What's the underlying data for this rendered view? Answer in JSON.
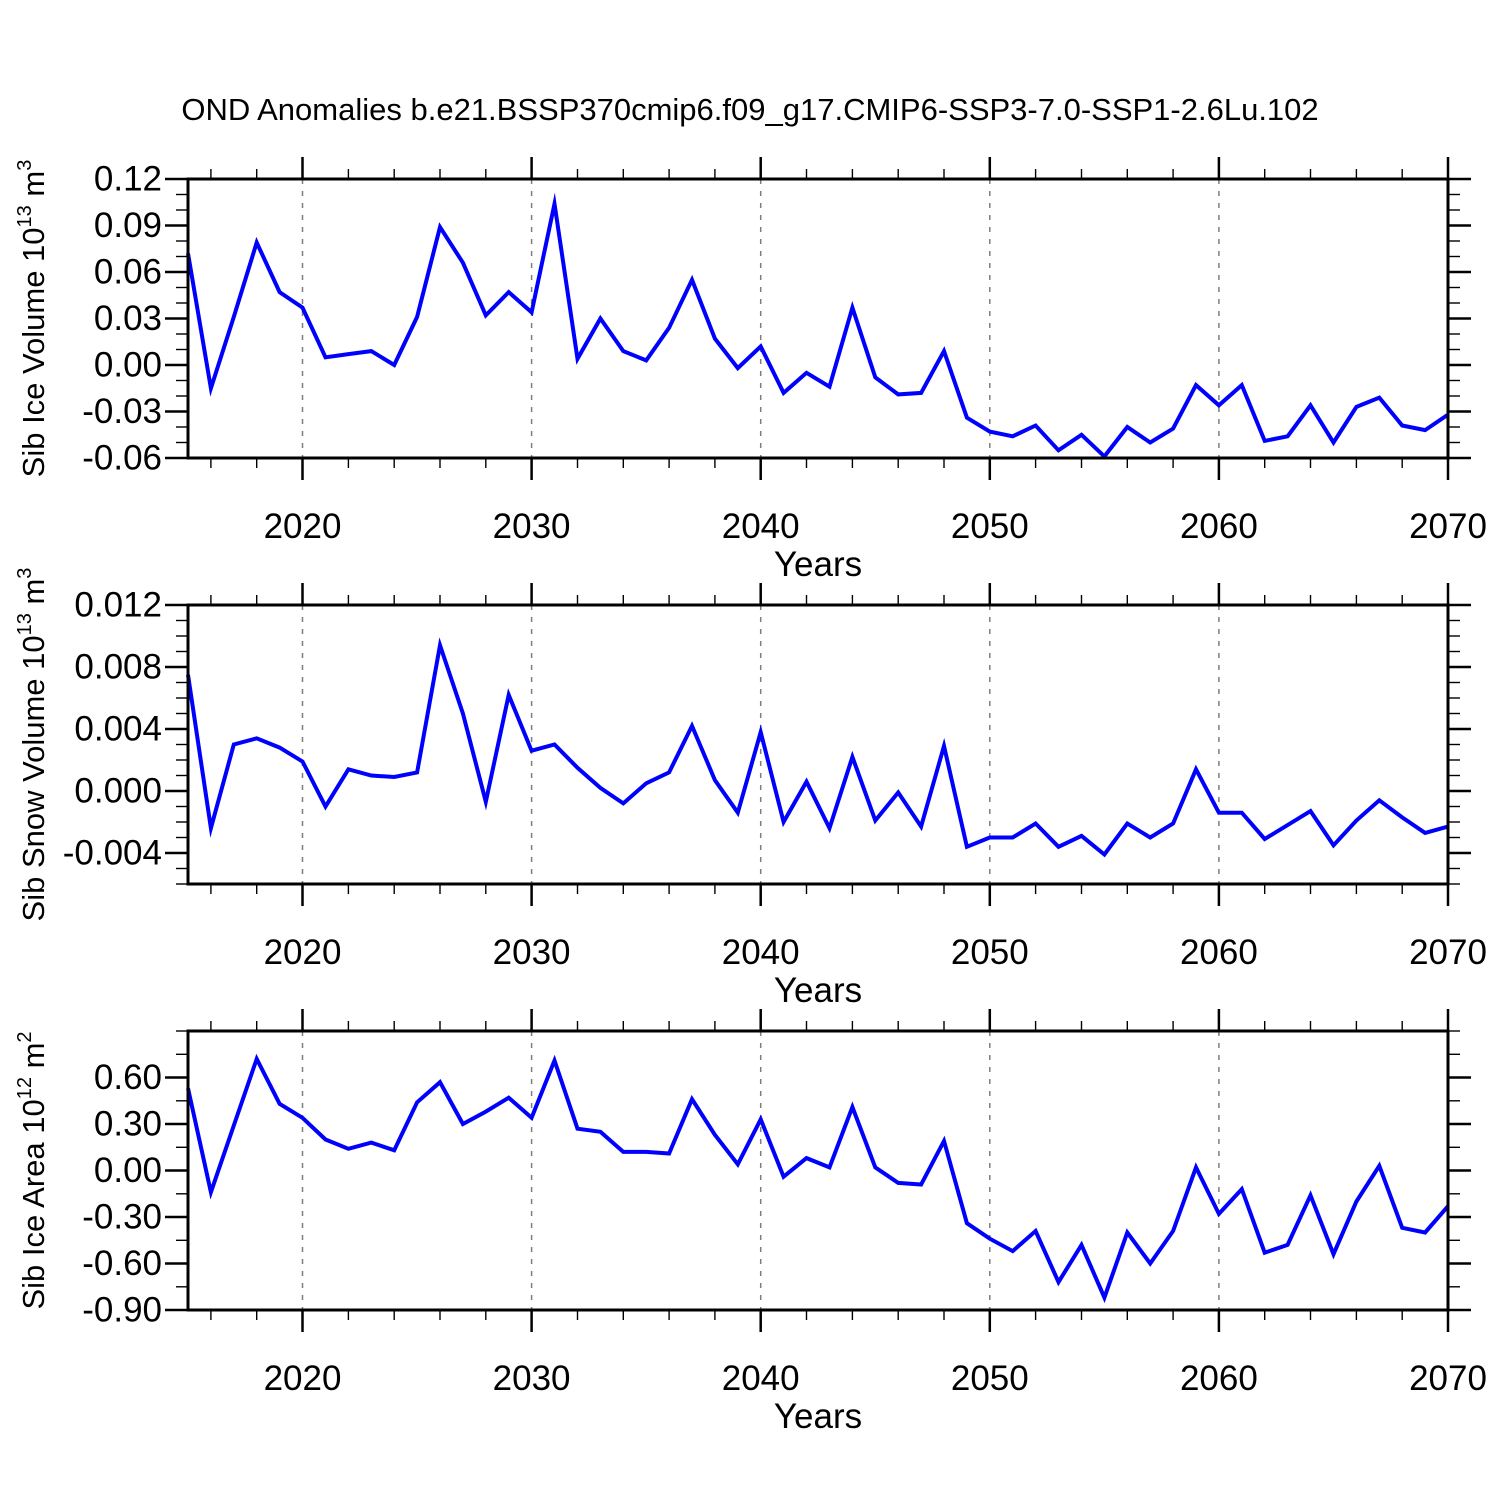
{
  "chart_data": {
    "type": "line",
    "title": "OND Anomalies b.e21.BSSP370cmip6.f09_g17.CMIP6-SSP3-7.0-SSP1-2.6Lu.102",
    "line_color": "#0000ff",
    "background_color": "#ffffff",
    "legend": "none",
    "x": {
      "label": "Years",
      "start": 2015,
      "end": 2070,
      "major_ticks": [
        2020,
        2030,
        2040,
        2050,
        2060,
        2070
      ],
      "tick_labels": [
        "2020",
        "2030",
        "2040",
        "2050",
        "2060",
        "2070"
      ],
      "minor_step": 2,
      "gridline_years": [
        2020,
        2030,
        2040,
        2050,
        2060
      ],
      "gridline_style": "dashed"
    },
    "years": [
      2015,
      2016,
      2017,
      2018,
      2019,
      2020,
      2021,
      2022,
      2023,
      2024,
      2025,
      2026,
      2027,
      2028,
      2029,
      2030,
      2031,
      2032,
      2033,
      2034,
      2035,
      2036,
      2037,
      2038,
      2039,
      2040,
      2041,
      2042,
      2043,
      2044,
      2045,
      2046,
      2047,
      2048,
      2049,
      2050,
      2051,
      2052,
      2053,
      2054,
      2055,
      2056,
      2057,
      2058,
      2059,
      2060,
      2061,
      2062,
      2063,
      2064,
      2065,
      2066,
      2067,
      2068,
      2069,
      2070
    ],
    "panels": [
      {
        "name": "sib-ice-volume",
        "ylabel_parts": [
          {
            "t": "Sib Ice Volume 10"
          },
          {
            "t": "13",
            "sup": true
          },
          {
            "t": " m"
          },
          {
            "t": "3",
            "sup": true
          }
        ],
        "ylim": [
          -0.06,
          0.12
        ],
        "ymajor": [
          0.12,
          0.09,
          0.06,
          0.03,
          0.0,
          -0.03,
          -0.06
        ],
        "ymajor_labels": [
          "0.12",
          "0.09",
          "0.06",
          "0.03",
          "0.00",
          "-0.03",
          "-0.06"
        ],
        "yminor_step": 0.01,
        "values": [
          0.072,
          -0.015,
          0.031,
          0.079,
          0.047,
          0.037,
          0.005,
          0.007,
          0.009,
          0.0,
          0.031,
          0.089,
          0.066,
          0.032,
          0.047,
          0.034,
          0.104,
          0.004,
          0.03,
          0.009,
          0.003,
          0.024,
          0.055,
          0.017,
          -0.002,
          0.012,
          -0.018,
          -0.005,
          -0.014,
          0.037,
          -0.008,
          -0.019,
          -0.018,
          0.009,
          -0.034,
          -0.043,
          -0.046,
          -0.039,
          -0.055,
          -0.045,
          -0.059,
          -0.04,
          -0.05,
          -0.041,
          -0.013,
          -0.026,
          -0.013,
          -0.049,
          -0.046,
          -0.026,
          -0.05,
          -0.027,
          -0.021,
          -0.039,
          -0.042,
          -0.032
        ]
      },
      {
        "name": "sib-snow-volume",
        "ylabel_parts": [
          {
            "t": "Sib Snow Volume 10"
          },
          {
            "t": "13",
            "sup": true
          },
          {
            "t": " m"
          },
          {
            "t": "3",
            "sup": true
          }
        ],
        "ylim": [
          -0.006,
          0.012
        ],
        "ymajor": [
          0.012,
          0.008,
          0.004,
          0.0,
          -0.004
        ],
        "ymajor_labels": [
          "0.012",
          "0.008",
          "0.004",
          "0.000",
          "-0.004"
        ],
        "yminor_step": 0.001,
        "values": [
          0.0075,
          -0.0024,
          0.003,
          0.0034,
          0.0028,
          0.0019,
          -0.001,
          0.0014,
          0.001,
          0.0009,
          0.0012,
          0.0094,
          0.005,
          -0.0007,
          0.0062,
          0.0026,
          0.003,
          0.0015,
          0.0002,
          -0.0008,
          0.0005,
          0.0012,
          0.0042,
          0.0007,
          -0.0014,
          0.0038,
          -0.002,
          0.0006,
          -0.0024,
          0.0022,
          -0.0019,
          -0.0001,
          -0.0023,
          0.0029,
          -0.0036,
          -0.003,
          -0.003,
          -0.0021,
          -0.0036,
          -0.0029,
          -0.0041,
          -0.0021,
          -0.003,
          -0.0021,
          0.0014,
          -0.0014,
          -0.0014,
          -0.0031,
          -0.0022,
          -0.0013,
          -0.0035,
          -0.0019,
          -0.0006,
          -0.0017,
          -0.0027,
          -0.0023
        ]
      },
      {
        "name": "sib-ice-area",
        "ylabel_parts": [
          {
            "t": "Sib Ice Area 10"
          },
          {
            "t": "12",
            "sup": true
          },
          {
            "t": " m"
          },
          {
            "t": "2",
            "sup": true
          }
        ],
        "ylim": [
          -0.9,
          0.9
        ],
        "ymajor": [
          0.6,
          0.3,
          0.0,
          -0.3,
          -0.6,
          -0.9
        ],
        "ymajor_labels": [
          "0.60",
          "0.30",
          "0.00",
          "-0.30",
          "-0.60",
          "-0.90"
        ],
        "yminor_step": 0.15,
        "values": [
          0.53,
          -0.14,
          0.29,
          0.72,
          0.43,
          0.34,
          0.2,
          0.14,
          0.18,
          0.13,
          0.44,
          0.57,
          0.3,
          0.38,
          0.47,
          0.34,
          0.71,
          0.27,
          0.25,
          0.12,
          0.12,
          0.11,
          0.46,
          0.23,
          0.04,
          0.33,
          -0.04,
          0.08,
          0.02,
          0.41,
          0.02,
          -0.08,
          -0.09,
          0.19,
          -0.34,
          -0.44,
          -0.52,
          -0.39,
          -0.72,
          -0.48,
          -0.82,
          -0.4,
          -0.6,
          -0.39,
          0.02,
          -0.28,
          -0.12,
          -0.53,
          -0.48,
          -0.16,
          -0.54,
          -0.2,
          0.03,
          -0.37,
          -0.4,
          -0.23
        ]
      }
    ]
  }
}
